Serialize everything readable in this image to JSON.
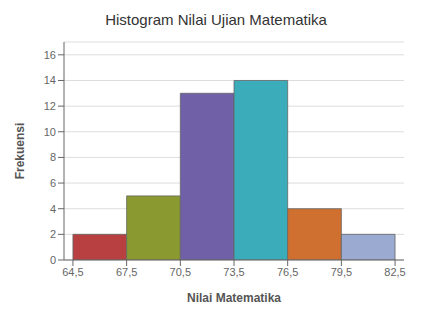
{
  "chart_data": {
    "type": "histogram",
    "title": "Histogram Nilai Ujian Matematika",
    "xlabel": "Nilai Matematika",
    "ylabel": "Frekuensi",
    "bins": [
      64.5,
      67.5,
      70.5,
      73.5,
      76.5,
      79.5,
      82.5
    ],
    "values": [
      2,
      5,
      13,
      14,
      4,
      2
    ],
    "colors": [
      "#b84040",
      "#8a9a30",
      "#7060a8",
      "#3aacba",
      "#d07030",
      "#9aaad0"
    ],
    "xlim": [
      64,
      83
    ],
    "xticks": [
      {
        "value": 64.5,
        "label": "64,5"
      },
      {
        "value": 67.5,
        "label": "67,5"
      },
      {
        "value": 70.5,
        "label": "70,5"
      },
      {
        "value": 73.5,
        "label": "73,5"
      },
      {
        "value": 76.5,
        "label": "76,5"
      },
      {
        "value": 79.5,
        "label": "79,5"
      },
      {
        "value": 82.5,
        "label": "82,5"
      }
    ],
    "ylim": [
      0,
      17
    ],
    "yticks": [
      0,
      2,
      4,
      6,
      8,
      10,
      12,
      14,
      16
    ],
    "grid": true
  }
}
